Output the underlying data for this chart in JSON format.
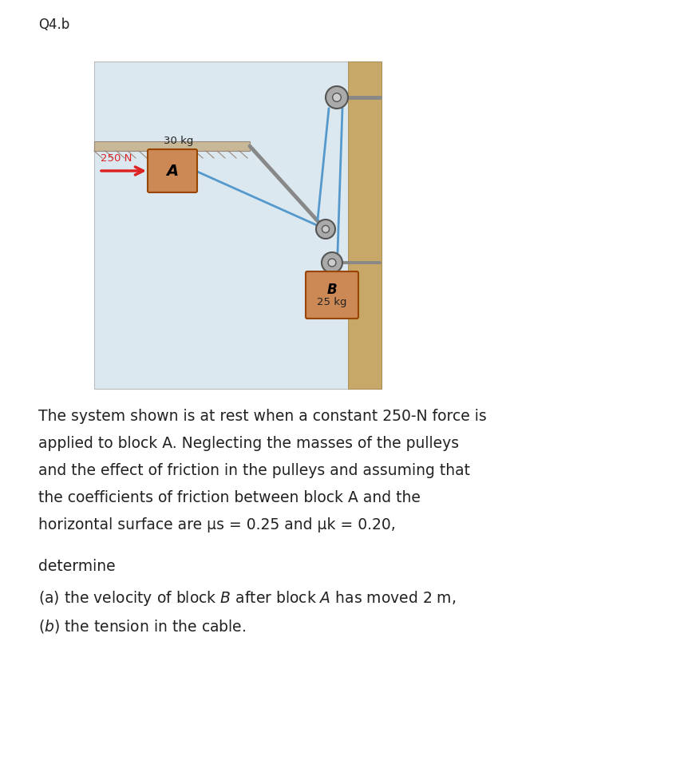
{
  "title": "Q4.b",
  "bg_color": "#ffffff",
  "diagram_bg": "#dce8f0",
  "block_color": "#cc8855",
  "block_A_label": "A",
  "block_B_label": "B",
  "block_A_mass": "30 kg",
  "block_B_mass": "25 kg",
  "force_label": "250 N",
  "force_color": "#dd2222",
  "cable_color": "#5599cc",
  "wall_color": "#c8a868",
  "surface_color": "#c8b898",
  "rail_color": "#888888",
  "pulley_face": "#aaaaaa",
  "pulley_outline": "#555555",
  "text_line1": "The system shown is at rest when a constant 250-N force is",
  "text_line2": "applied to block A. Neglecting the masses of the pulleys",
  "text_line3": "and the effect of friction in the pulleys and assuming that",
  "text_line4": "the coefficients of friction between block A and the",
  "text_line5": "horizontal surface are μs = 0.25 and μk = 0.20,",
  "determine_text": "determine",
  "part_a_text": "(a) the velocity of block $\\it{B}$ after block $\\it{A}$ has moved 2 m,",
  "part_b_text": "($\\it{b}$) the tension in the cable.",
  "font_size_title": 12,
  "font_size_body": 13.5,
  "font_size_small": 9.5
}
